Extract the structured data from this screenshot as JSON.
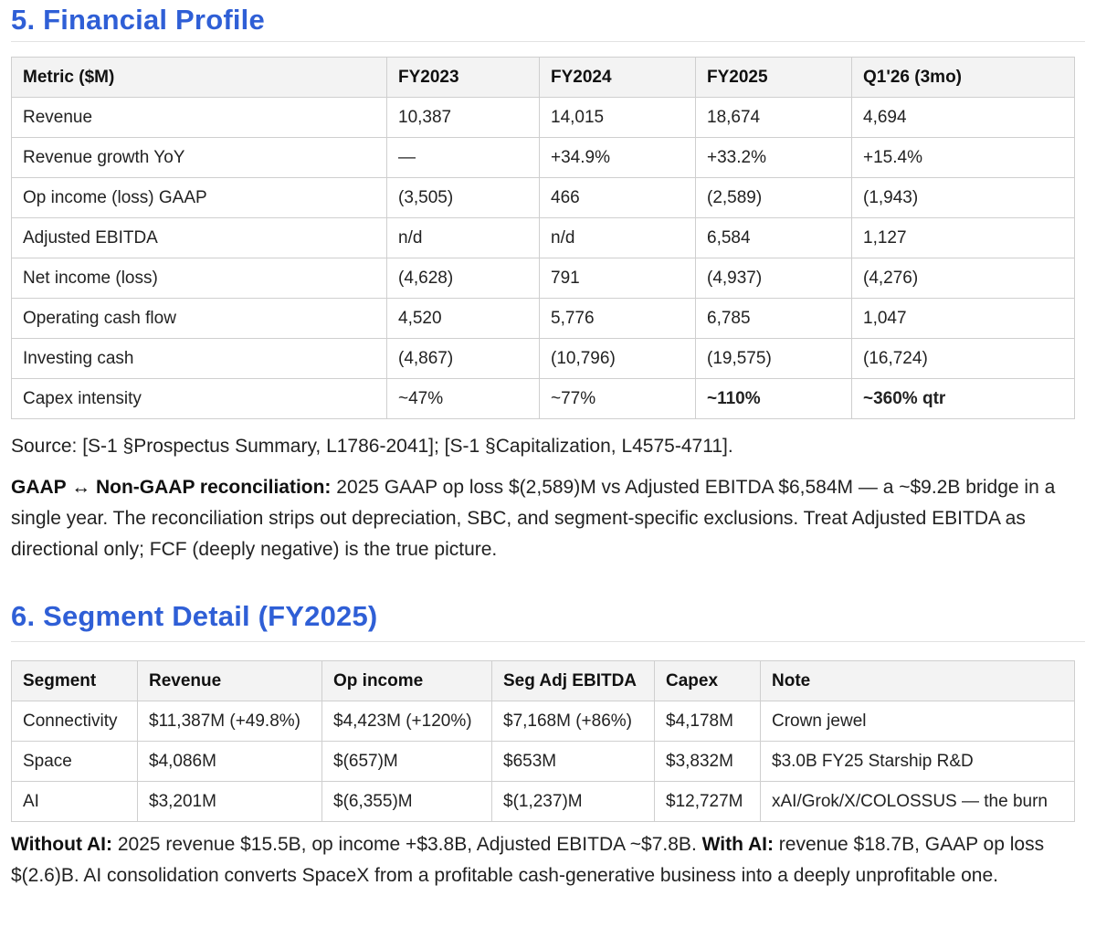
{
  "financial": {
    "heading": "5. Financial Profile",
    "headers": [
      "Metric ($M)",
      "FY2023",
      "FY2024",
      "FY2025",
      "Q1'26 (3mo)"
    ],
    "rows": [
      {
        "metric": "Revenue",
        "fy2023": "10,387",
        "fy2024": "14,015",
        "fy2025": "18,674",
        "q126": "4,694"
      },
      {
        "metric": "Revenue growth YoY",
        "fy2023": "—",
        "fy2024": "+34.9%",
        "fy2025": "+33.2%",
        "q126": "+15.4%"
      },
      {
        "metric": "Op income (loss) GAAP",
        "fy2023": "(3,505)",
        "fy2024": "466",
        "fy2025": "(2,589)",
        "q126": "(1,943)"
      },
      {
        "metric": "Adjusted EBITDA",
        "fy2023": "n/d",
        "fy2024": "n/d",
        "fy2025": "6,584",
        "q126": "1,127"
      },
      {
        "metric": "Net income (loss)",
        "fy2023": "(4,628)",
        "fy2024": "791",
        "fy2025": "(4,937)",
        "q126": "(4,276)"
      },
      {
        "metric": "Operating cash flow",
        "fy2023": "4,520",
        "fy2024": "5,776",
        "fy2025": "6,785",
        "q126": "1,047"
      },
      {
        "metric": "Investing cash",
        "fy2023": "(4,867)",
        "fy2024": "(10,796)",
        "fy2025": "(19,575)",
        "q126": "(16,724)"
      },
      {
        "metric": "Capex intensity",
        "fy2023": "~47%",
        "fy2024": "~77%",
        "fy2025": "~110%",
        "q126": "~360% qtr"
      }
    ],
    "source": "Source: [S-1 §Prospectus Summary, L1786-2041]; [S-1 §Capitalization, L4575-4711].",
    "recon_label": "GAAP ↔ Non-GAAP reconciliation:",
    "recon_text": " 2025 GAAP op loss $(2,589)M vs Adjusted EBITDA $6,584M — a ~$9.2B bridge in a single year. The reconciliation strips out depreciation, SBC, and segment-specific exclusions. Treat Adjusted EBITDA as directional only; FCF (deeply negative) is the true picture."
  },
  "segment": {
    "heading": "6. Segment Detail (FY2025)",
    "headers": [
      "Segment",
      "Revenue",
      "Op income",
      "Seg Adj EBITDA",
      "Capex",
      "Note"
    ],
    "rows": [
      {
        "segment": "Connectivity",
        "revenue": "$11,387M (+49.8%)",
        "op_income": "$4,423M (+120%)",
        "seg_ebitda": "$7,168M (+86%)",
        "capex": "$4,178M",
        "note": "Crown jewel"
      },
      {
        "segment": "Space",
        "revenue": "$4,086M",
        "op_income": "$(657)M",
        "seg_ebitda": "$653M",
        "capex": "$3,832M",
        "note": "$3.0B FY25 Starship R&D"
      },
      {
        "segment": "AI",
        "revenue": "$3,201M",
        "op_income": "$(6,355)M",
        "seg_ebitda": "$(1,237)M",
        "capex": "$12,727M",
        "note": "xAI/Grok/X/COLOSSUS — the burn"
      }
    ],
    "without_ai_label": "Without AI:",
    "without_ai_text": " 2025 revenue $15.5B, op income +$3.8B, Adjusted EBITDA ~$7.8B. ",
    "with_ai_label": "With AI:",
    "with_ai_text": " revenue $18.7B, GAAP op loss $(2.6)B. AI consolidation converts SpaceX from a profitable cash-generative business into a deeply unprofitable one."
  }
}
